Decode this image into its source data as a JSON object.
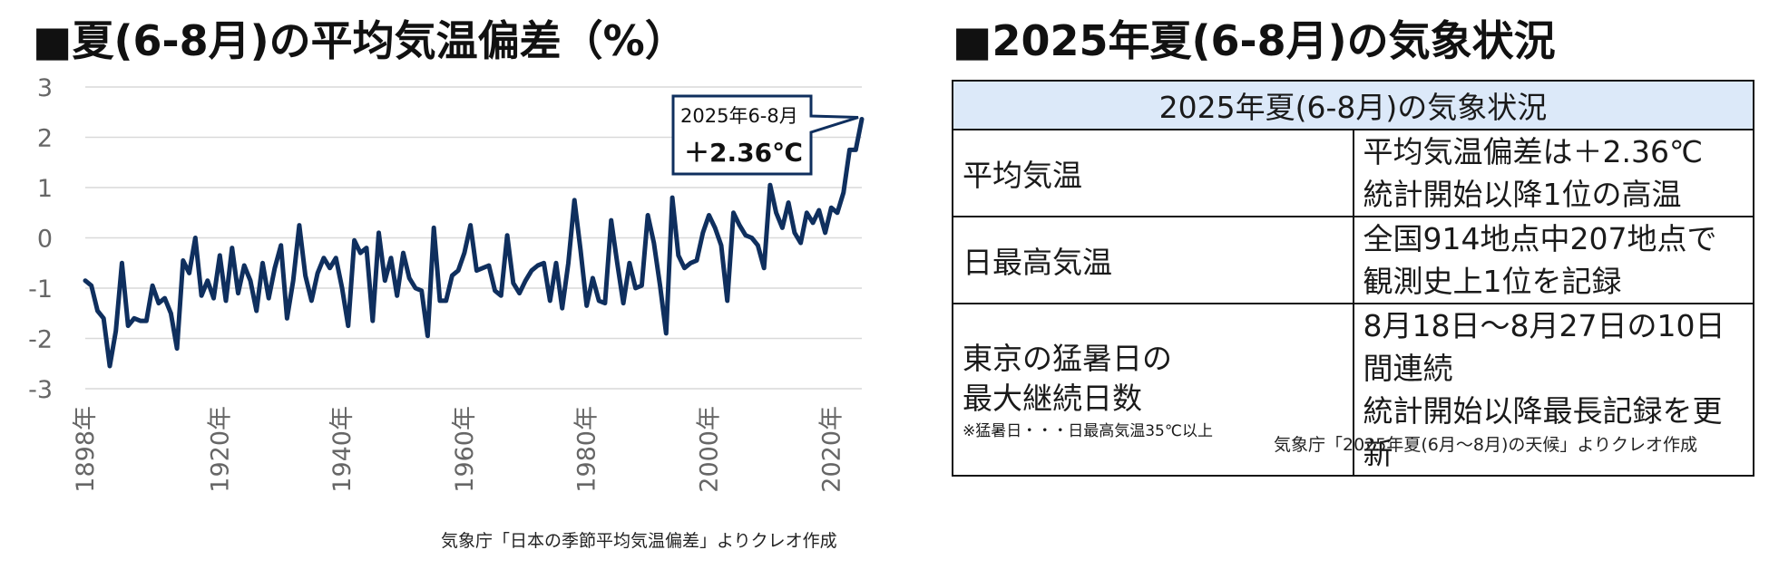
{
  "left": {
    "title": "■夏(6-8月)の平均気温偏差（%）",
    "source": "気象庁「日本の季節平均気温偏差」よりクレオ作成"
  },
  "right": {
    "title": "■2025年夏(6-8月)の気象状況",
    "source": "気象庁「2025年夏(6月〜8月)の天候」よりクレオ作成"
  },
  "table": {
    "header": "2025年夏(6-8月)の気象状況",
    "rows": [
      {
        "label": [
          "平均気温"
        ],
        "value": [
          "平均気温偏差は＋2.36℃",
          "統計開始以降1位の高温"
        ]
      },
      {
        "label": [
          "日最高気温"
        ],
        "value": [
          "全国914地点中207地点で",
          "観測史上1位を記録"
        ]
      },
      {
        "label": [
          "東京の猛暑日の",
          "最大継続日数"
        ],
        "note": "※猛暑日・・・日最高気温35℃以上",
        "value": [
          "8月18日〜8月27日の10日間連続",
          "統計開始以降最長記録を更新"
        ]
      }
    ]
  },
  "chart_data": {
    "type": "line",
    "title": "夏(6-8月)の平均気温偏差（%）",
    "xlabel": "",
    "ylabel": "",
    "ylim": [
      -3,
      3
    ],
    "yticks": [
      3,
      2,
      1,
      0,
      -1,
      -2,
      -3
    ],
    "xticks": [
      1898,
      1920,
      1940,
      1960,
      1980,
      2000,
      2020
    ],
    "xtick_suffix": "年",
    "xlim": [
      1898,
      2025
    ],
    "grid": true,
    "color": "#0f2f5e",
    "callout": {
      "line1": "2025年6-8月",
      "line2": "＋2.36℃",
      "year": 2025,
      "value": 2.36
    },
    "series": [
      {
        "x": [
          1898,
          1899,
          1900,
          1901,
          1902,
          1903,
          1904,
          1905,
          1906,
          1907,
          1908,
          1909,
          1910,
          1911,
          1912,
          1913,
          1914,
          1915,
          1916,
          1917,
          1918,
          1919,
          1920,
          1921,
          1922,
          1923,
          1924,
          1925,
          1926,
          1927,
          1928,
          1929,
          1930,
          1931,
          1932,
          1933,
          1934,
          1935,
          1936,
          1937,
          1938,
          1939,
          1940,
          1941,
          1942,
          1943,
          1944,
          1945,
          1946,
          1947,
          1948,
          1949,
          1950,
          1951,
          1952,
          1953,
          1954,
          1955,
          1956,
          1957,
          1958,
          1959,
          1960,
          1961,
          1962,
          1963,
          1964,
          1965,
          1966,
          1967,
          1968,
          1969,
          1970,
          1971,
          1972,
          1973,
          1974,
          1975,
          1976,
          1977,
          1978,
          1979,
          1980,
          1981,
          1982,
          1983,
          1984,
          1985,
          1986,
          1987,
          1988,
          1989,
          1990,
          1991,
          1992,
          1993,
          1994,
          1995,
          1996,
          1997,
          1998,
          1999,
          2000,
          2001,
          2002,
          2003,
          2004,
          2005,
          2006,
          2007,
          2008,
          2009,
          2010,
          2011,
          2012,
          2013,
          2014,
          2015,
          2016,
          2017,
          2018,
          2019,
          2020,
          2021,
          2022,
          2023,
          2024,
          2025
        ],
        "values": [
          -0.85,
          -0.95,
          -1.45,
          -1.6,
          -2.55,
          -1.85,
          -0.5,
          -1.75,
          -1.6,
          -1.65,
          -1.65,
          -0.95,
          -1.3,
          -1.2,
          -1.5,
          -2.2,
          -0.45,
          -0.7,
          0.0,
          -1.15,
          -0.85,
          -1.2,
          -0.35,
          -1.25,
          -0.2,
          -1.1,
          -0.55,
          -0.85,
          -1.45,
          -0.5,
          -1.2,
          -0.6,
          -0.15,
          -1.6,
          -0.85,
          0.25,
          -0.75,
          -1.25,
          -0.7,
          -0.4,
          -0.6,
          -0.4,
          -1.0,
          -1.75,
          -0.05,
          -0.3,
          -0.2,
          -1.65,
          0.1,
          -0.85,
          -0.4,
          -1.15,
          -0.3,
          -0.8,
          -1.0,
          -1.05,
          -1.95,
          0.2,
          -1.25,
          -1.25,
          -0.75,
          -0.65,
          -0.3,
          0.25,
          -0.65,
          -0.6,
          -0.55,
          -1.05,
          -1.15,
          0.05,
          -0.9,
          -1.1,
          -0.85,
          -0.65,
          -0.55,
          -0.5,
          -1.25,
          -0.5,
          -1.4,
          -0.5,
          0.75,
          -0.25,
          -1.35,
          -0.8,
          -1.25,
          -1.3,
          0.35,
          -0.5,
          -1.3,
          -0.5,
          -1.0,
          -0.95,
          0.45,
          -0.1,
          -0.95,
          -1.9,
          0.8,
          -0.35,
          -0.6,
          -0.5,
          -0.45,
          0.1,
          0.45,
          0.2,
          -0.15,
          -1.25,
          0.5,
          0.25,
          0.05,
          0.0,
          -0.15,
          -0.6,
          1.05,
          0.5,
          0.2,
          0.7,
          0.1,
          -0.1,
          0.5,
          0.3,
          0.55,
          0.1,
          0.6,
          0.5,
          0.9,
          1.75,
          1.75,
          2.36
        ]
      }
    ]
  }
}
